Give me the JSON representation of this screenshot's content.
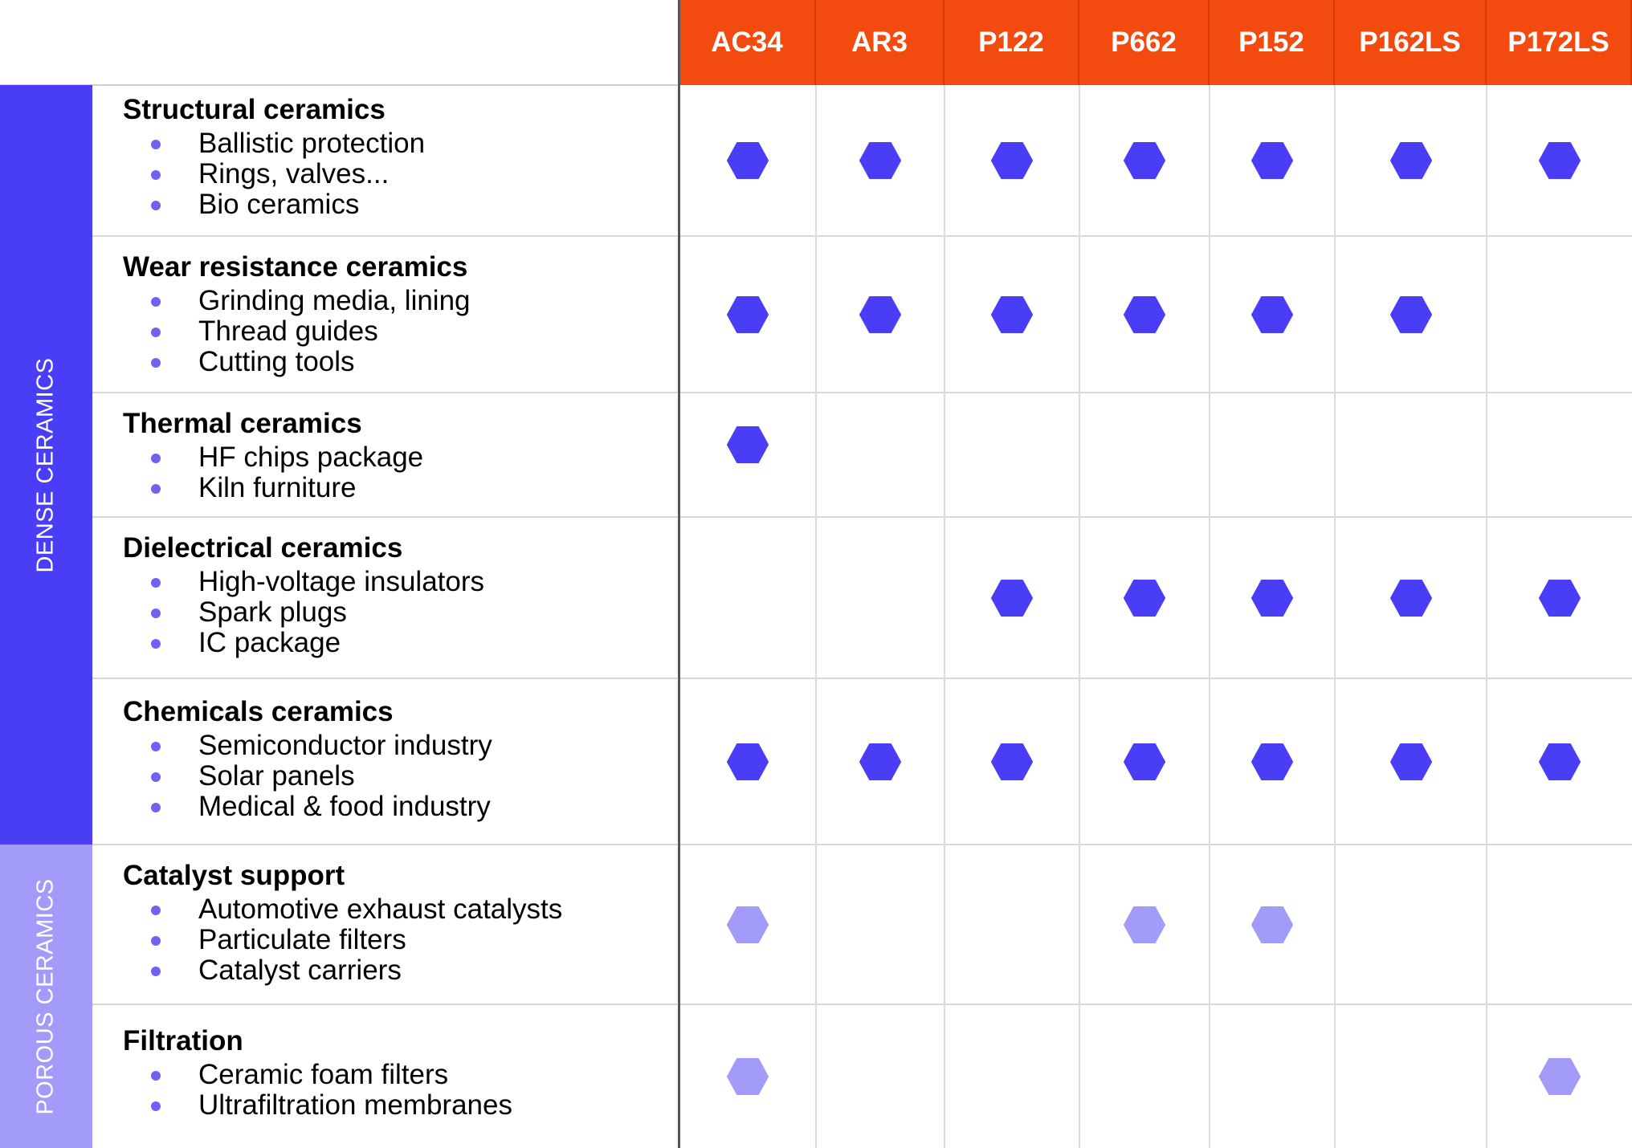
{
  "colors": {
    "header": "#f24a0f",
    "dense": "#4a3df6",
    "porous": "#a39bfa",
    "bullet": "#6e62f2"
  },
  "columns": [
    "AC34",
    "AR3",
    "P122",
    "P662",
    "P152",
    "P162LS",
    "P172LS"
  ],
  "groups": [
    {
      "label": "DENSE CERAMICS",
      "color": "#4a3df6"
    },
    {
      "label": "POROUS CERAMICS",
      "color": "#a39bfa"
    }
  ],
  "rows": [
    {
      "title": "Structural ceramics",
      "group": "dense",
      "items": [
        "Ballistic protection",
        "Rings, valves...",
        "Bio ceramics"
      ],
      "marks": [
        true,
        true,
        true,
        true,
        true,
        true,
        true
      ]
    },
    {
      "title": "Wear resistance ceramics",
      "group": "dense",
      "items": [
        "Grinding media, lining",
        "Thread guides",
        "Cutting tools"
      ],
      "marks": [
        true,
        true,
        true,
        true,
        true,
        true,
        false
      ]
    },
    {
      "title": "Thermal ceramics",
      "group": "dense",
      "items": [
        "HF chips package",
        "Kiln furniture"
      ],
      "marks": [
        true,
        false,
        false,
        false,
        false,
        false,
        false
      ]
    },
    {
      "title": "Dielectrical ceramics",
      "group": "dense",
      "items": [
        "High-voltage insulators",
        "Spark plugs",
        "IC package"
      ],
      "marks": [
        false,
        false,
        true,
        true,
        true,
        true,
        true
      ]
    },
    {
      "title": "Chemicals ceramics",
      "group": "dense",
      "items": [
        "Semiconductor industry",
        "Solar panels",
        "Medical & food industry"
      ],
      "marks": [
        true,
        true,
        true,
        true,
        true,
        true,
        true
      ]
    },
    {
      "title": "Catalyst support",
      "group": "porous",
      "items": [
        "Automotive exhaust catalysts",
        "Particulate filters",
        "Catalyst carriers"
      ],
      "marks": [
        true,
        false,
        false,
        true,
        true,
        false,
        false
      ]
    },
    {
      "title": "Filtration",
      "group": "porous",
      "items": [
        "Ceramic foam filters",
        "Ultrafiltration membranes"
      ],
      "marks": [
        true,
        false,
        false,
        false,
        false,
        false,
        true
      ]
    }
  ]
}
